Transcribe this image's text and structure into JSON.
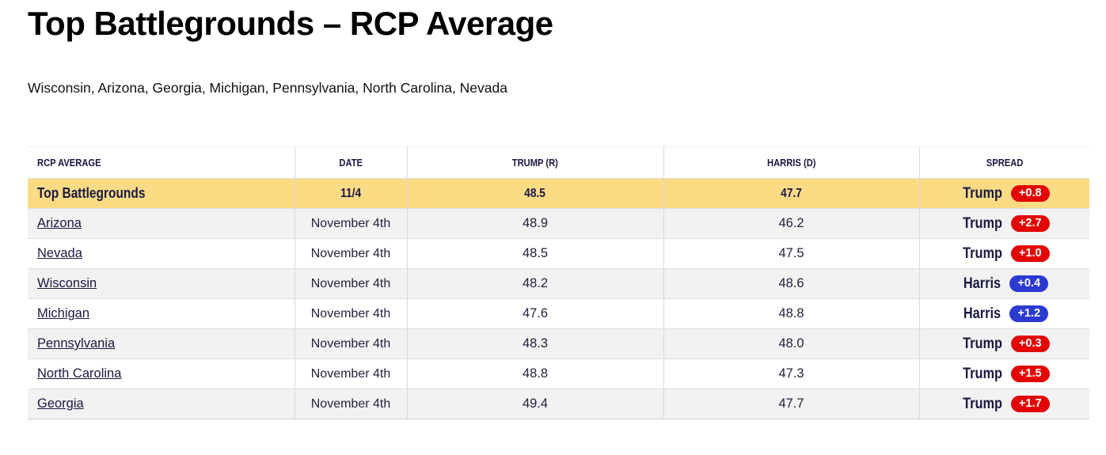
{
  "page": {
    "title": "Top Battlegrounds – RCP Average",
    "subtitle": "Wisconsin, Arizona, Georgia, Michigan, Pennsylvania, North Carolina, Nevada"
  },
  "table": {
    "columns": [
      "RCP AVERAGE",
      "DATE",
      "TRUMP (R)",
      "HARRIS (D)",
      "SPREAD"
    ],
    "summary": {
      "label": "Top Battlegrounds",
      "date": "11/4",
      "trump": "48.5",
      "harris": "47.7",
      "spread_leader": "Trump",
      "spread_value": "+0.8",
      "spread_party": "rep"
    },
    "rows": [
      {
        "state": "Arizona",
        "date": "November 4th",
        "trump": "48.9",
        "harris": "46.2",
        "spread_leader": "Trump",
        "spread_value": "+2.7",
        "spread_party": "rep"
      },
      {
        "state": "Nevada",
        "date": "November 4th",
        "trump": "48.5",
        "harris": "47.5",
        "spread_leader": "Trump",
        "spread_value": "+1.0",
        "spread_party": "rep"
      },
      {
        "state": "Wisconsin",
        "date": "November 4th",
        "trump": "48.2",
        "harris": "48.6",
        "spread_leader": "Harris",
        "spread_value": "+0.4",
        "spread_party": "dem"
      },
      {
        "state": "Michigan",
        "date": "November 4th",
        "trump": "47.6",
        "harris": "48.8",
        "spread_leader": "Harris",
        "spread_value": "+1.2",
        "spread_party": "dem"
      },
      {
        "state": "Pennsylvania",
        "date": "November 4th",
        "trump": "48.3",
        "harris": "48.0",
        "spread_leader": "Trump",
        "spread_value": "+0.3",
        "spread_party": "rep"
      },
      {
        "state": "North Carolina",
        "date": "November 4th",
        "trump": "48.8",
        "harris": "47.3",
        "spread_leader": "Trump",
        "spread_value": "+1.5",
        "spread_party": "rep"
      },
      {
        "state": "Georgia",
        "date": "November 4th",
        "trump": "49.4",
        "harris": "47.7",
        "spread_leader": "Trump",
        "spread_value": "+1.7",
        "spread_party": "rep"
      }
    ]
  },
  "colors": {
    "summary_row_bg": "#fcdb85",
    "alt_row_bg": "#f2f2f2",
    "rep_badge": "#e30505",
    "dem_badge": "#2b3bd2",
    "navy_text": "#191942"
  },
  "chart_data": {
    "type": "table",
    "title": "Top Battlegrounds – RCP Average",
    "columns": [
      "RCP AVERAGE",
      "DATE",
      "TRUMP (R)",
      "HARRIS (D)",
      "SPREAD"
    ],
    "rows": [
      [
        "Top Battlegrounds",
        "11/4",
        48.5,
        47.7,
        "Trump +0.8"
      ],
      [
        "Arizona",
        "November 4th",
        48.9,
        46.2,
        "Trump +2.7"
      ],
      [
        "Nevada",
        "November 4th",
        48.5,
        47.5,
        "Trump +1.0"
      ],
      [
        "Wisconsin",
        "November 4th",
        48.2,
        48.6,
        "Harris +0.4"
      ],
      [
        "Michigan",
        "November 4th",
        47.6,
        48.8,
        "Harris +1.2"
      ],
      [
        "Pennsylvania",
        "November 4th",
        48.3,
        48.0,
        "Trump +0.3"
      ],
      [
        "North Carolina",
        "November 4th",
        48.8,
        47.3,
        "Trump +1.5"
      ],
      [
        "Georgia",
        "November 4th",
        49.4,
        47.7,
        "Trump +1.7"
      ]
    ]
  }
}
